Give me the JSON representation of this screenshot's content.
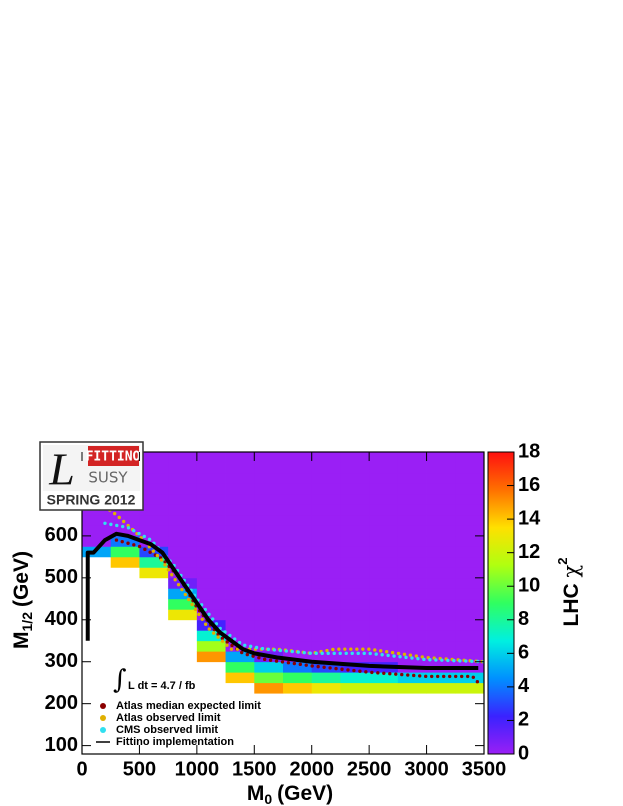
{
  "chart_data": {
    "type": "heatmap",
    "x_label": {
      "main": "M",
      "sub": "0",
      "unit": "(GeV)"
    },
    "y_label": {
      "main": "M",
      "sub": "1/2",
      "unit": "(GeV)"
    },
    "z_label": {
      "main": "LHC ",
      "symbol": "χ",
      "sup": "2"
    },
    "annotation": "L dt = 4.7 / fb",
    "logo": {
      "brand": "FITTINO",
      "letter": "L",
      "sub": "SUSY",
      "season": "SPRING 2012"
    },
    "xlim": [
      0,
      3500
    ],
    "ylim": [
      80,
      800
    ],
    "zlim": [
      0,
      18
    ],
    "xticks": [
      0,
      500,
      1000,
      1500,
      2000,
      2500,
      3000,
      3500
    ],
    "yticks": [
      100,
      200,
      300,
      400,
      500,
      600
    ],
    "zticks": [
      0,
      2,
      4,
      6,
      8,
      10,
      12,
      14,
      16,
      18
    ],
    "colorscale": [
      "#9a1ff5",
      "#3a22ff",
      "#0090ff",
      "#00f0e0",
      "#30ff60",
      "#b0ff10",
      "#ffe000",
      "#ff7000",
      "#ff1010"
    ],
    "xbins": [
      0,
      250,
      500,
      750,
      1000,
      1250,
      1500,
      1750,
      2000,
      2250,
      2500,
      2750,
      3000,
      3250,
      3500
    ],
    "ybins": [
      100,
      125,
      150,
      175,
      200,
      225,
      250,
      275,
      300,
      325,
      350,
      375,
      400,
      425,
      450,
      475,
      500,
      525,
      550,
      575,
      600,
      625,
      650,
      675,
      700,
      725,
      750,
      775,
      800
    ],
    "z": [
      [
        null,
        null,
        null,
        null,
        null,
        null,
        null,
        null,
        null,
        null,
        null,
        null,
        null,
        null
      ],
      [
        null,
        null,
        null,
        null,
        null,
        null,
        null,
        null,
        null,
        null,
        null,
        null,
        null,
        null
      ],
      [
        null,
        null,
        null,
        null,
        null,
        null,
        null,
        null,
        null,
        null,
        null,
        null,
        null,
        null
      ],
      [
        null,
        null,
        null,
        null,
        null,
        null,
        null,
        null,
        null,
        null,
        null,
        null,
        null,
        null
      ],
      [
        null,
        null,
        null,
        null,
        null,
        null,
        null,
        null,
        null,
        null,
        null,
        null,
        null,
        null
      ],
      [
        null,
        null,
        null,
        null,
        null,
        null,
        15,
        14,
        13,
        12,
        12,
        12,
        12,
        12
      ],
      [
        null,
        null,
        null,
        null,
        null,
        14,
        10,
        9,
        8,
        7,
        7,
        6,
        6,
        6
      ],
      [
        null,
        null,
        null,
        null,
        null,
        9,
        6,
        4,
        3,
        2,
        2,
        0,
        0,
        0
      ],
      [
        null,
        null,
        null,
        null,
        15,
        5,
        1,
        0,
        0,
        0,
        0,
        0,
        0,
        0
      ],
      [
        null,
        null,
        null,
        null,
        11,
        0,
        0,
        0,
        0,
        0,
        0,
        0,
        0,
        0
      ],
      [
        null,
        null,
        null,
        null,
        7,
        0,
        0,
        0,
        0,
        0,
        0,
        0,
        0,
        0
      ],
      [
        null,
        null,
        null,
        null,
        2,
        0,
        0,
        0,
        0,
        0,
        0,
        0,
        0,
        0
      ],
      [
        null,
        null,
        null,
        13,
        0,
        0,
        0,
        0,
        0,
        0,
        0,
        0,
        0,
        0
      ],
      [
        null,
        null,
        null,
        9,
        0,
        0,
        0,
        0,
        0,
        0,
        0,
        0,
        0,
        0
      ],
      [
        null,
        null,
        null,
        5,
        0,
        0,
        0,
        0,
        0,
        0,
        0,
        0,
        0,
        0
      ],
      [
        null,
        null,
        null,
        1,
        0,
        0,
        0,
        0,
        0,
        0,
        0,
        0,
        0,
        0
      ],
      [
        null,
        null,
        13,
        0,
        0,
        0,
        0,
        0,
        0,
        0,
        0,
        0,
        0,
        0
      ],
      [
        null,
        14,
        8,
        0,
        0,
        0,
        0,
        0,
        0,
        0,
        0,
        0,
        0,
        0
      ],
      [
        5,
        9,
        3,
        0,
        0,
        0,
        0,
        0,
        0,
        0,
        0,
        0,
        0,
        0
      ],
      [
        0,
        4,
        0,
        0,
        0,
        0,
        0,
        0,
        0,
        0,
        0,
        0,
        0,
        0
      ],
      [
        0,
        0,
        0,
        0,
        0,
        0,
        0,
        0,
        0,
        0,
        0,
        0,
        0,
        0
      ],
      [
        0,
        0,
        0,
        0,
        0,
        0,
        0,
        0,
        0,
        0,
        0,
        0,
        0,
        0
      ],
      [
        0,
        0,
        0,
        0,
        0,
        0,
        0,
        0,
        0,
        0,
        0,
        0,
        0,
        0
      ],
      [
        0,
        0,
        0,
        0,
        0,
        0,
        0,
        0,
        0,
        0,
        0,
        0,
        0,
        0
      ],
      [
        0,
        0,
        0,
        0,
        0,
        0,
        0,
        0,
        0,
        0,
        0,
        0,
        0,
        0
      ],
      [
        0,
        0,
        0,
        0,
        0,
        0,
        0,
        0,
        0,
        0,
        0,
        0,
        0,
        0
      ],
      [
        0,
        0,
        0,
        0,
        0,
        0,
        0,
        0,
        0,
        0,
        0,
        0,
        0,
        0
      ],
      [
        0,
        0,
        0,
        0,
        0,
        0,
        0,
        0,
        0,
        0,
        0,
        0,
        0,
        0
      ]
    ],
    "series": [
      {
        "name": "Atlas median expected limit",
        "color": "#8b0000",
        "style": "dots",
        "x": [
          300,
          500,
          700,
          850,
          1000,
          1200,
          1400,
          1600,
          2000,
          2500,
          3000,
          3400,
          3450
        ],
        "y": [
          590,
          575,
          545,
          500,
          430,
          360,
          320,
          305,
          290,
          275,
          265,
          265,
          250
        ]
      },
      {
        "name": "Atlas observed limit",
        "color": "#e0b000",
        "style": "dots",
        "x": [
          200,
          300,
          500,
          700,
          800,
          900,
          950,
          1000,
          1100,
          1300,
          1500,
          1700,
          2000,
          2200,
          2500,
          3000,
          3500
        ],
        "y": [
          670,
          650,
          600,
          540,
          500,
          460,
          440,
          420,
          380,
          330,
          330,
          330,
          320,
          330,
          330,
          310,
          300
        ]
      },
      {
        "name": "CMS observed limit",
        "color": "#30e0f0",
        "style": "dots",
        "x": [
          200,
          400,
          600,
          800,
          1000,
          1200,
          1400,
          1600,
          1800,
          2000,
          2200,
          2500,
          3000,
          3500
        ],
        "y": [
          630,
          620,
          590,
          530,
          450,
          380,
          340,
          330,
          325,
          320,
          320,
          320,
          305,
          300
        ]
      },
      {
        "name": "Fittino implementation",
        "color": "#000000",
        "style": "line",
        "x": [
          50,
          50,
          100,
          200,
          300,
          400,
          500,
          600,
          700,
          800,
          900,
          1000,
          1100,
          1200,
          1300,
          1400,
          1500,
          1700,
          2000,
          2500,
          3000,
          3450
        ],
        "y": [
          350,
          560,
          560,
          590,
          605,
          600,
          590,
          580,
          560,
          520,
          480,
          440,
          400,
          370,
          350,
          330,
          320,
          310,
          300,
          290,
          285,
          285
        ]
      }
    ]
  }
}
